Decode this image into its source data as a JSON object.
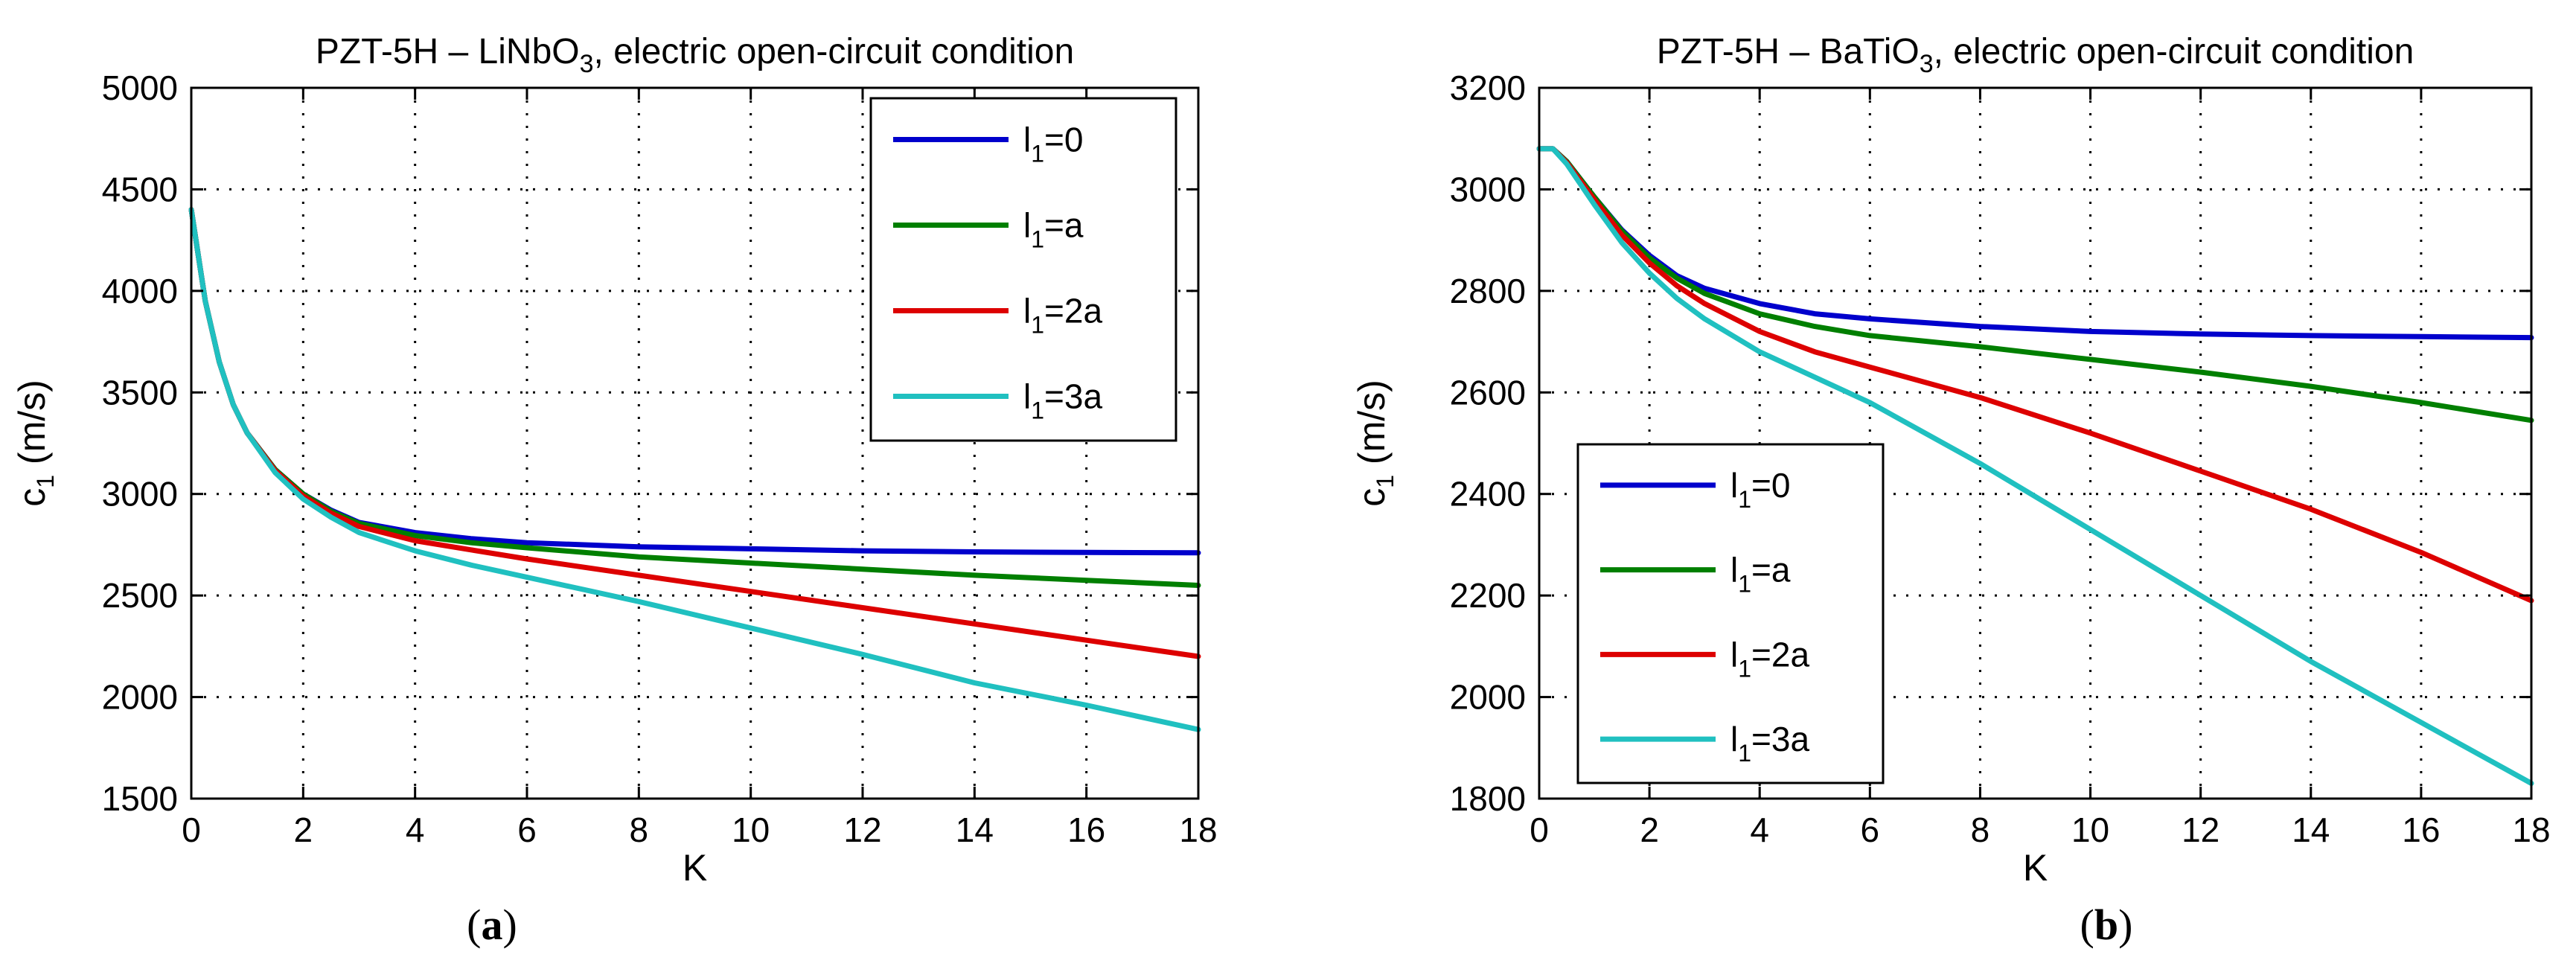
{
  "chart_data": [
    {
      "panel_label": "a",
      "type": "line",
      "title": "PZT-5H – LiNbO3, electric open-circuit condition",
      "title_parts": {
        "before": "PZT-5H – LiNbO",
        "sub": "3",
        "after": ", electric open-circuit condition"
      },
      "xlabel": "K",
      "ylabel": "c",
      "ylabel_sub": "1",
      "ylabel_unit": "(m/s)",
      "xlim": [
        0,
        18
      ],
      "ylim": [
        1500,
        5000
      ],
      "xticks": [
        0,
        2,
        4,
        6,
        8,
        10,
        12,
        14,
        16,
        18
      ],
      "yticks": [
        1500,
        2000,
        2500,
        3000,
        3500,
        4000,
        4500,
        5000
      ],
      "grid": true,
      "legend_position": "top-right",
      "series": [
        {
          "name": "l1=0",
          "label": {
            "pre": "l",
            "sub": "1",
            "post": "=0"
          },
          "color": "#0000cc",
          "x": [
            0,
            0.25,
            0.5,
            0.75,
            1,
            1.5,
            2,
            2.5,
            3,
            4,
            5,
            6,
            8,
            10,
            12,
            14,
            16,
            18
          ],
          "y": [
            4400,
            3950,
            3650,
            3440,
            3300,
            3120,
            3000,
            2920,
            2860,
            2810,
            2780,
            2760,
            2740,
            2730,
            2720,
            2715,
            2712,
            2710
          ]
        },
        {
          "name": "l1=a",
          "label": {
            "pre": "l",
            "sub": "1",
            "post": "=a"
          },
          "color": "#007f00",
          "x": [
            0,
            0.25,
            0.5,
            0.75,
            1,
            1.5,
            2,
            2.5,
            3,
            4,
            5,
            6,
            8,
            10,
            12,
            14,
            16,
            18
          ],
          "y": [
            4400,
            3950,
            3650,
            3440,
            3300,
            3120,
            3000,
            2915,
            2855,
            2795,
            2760,
            2735,
            2690,
            2660,
            2630,
            2600,
            2575,
            2550
          ]
        },
        {
          "name": "l1=2a",
          "label": {
            "pre": "l",
            "sub": "1",
            "post": "=2a"
          },
          "color": "#dd0000",
          "x": [
            0,
            0.25,
            0.5,
            0.75,
            1,
            1.5,
            2,
            2.5,
            3,
            4,
            5,
            6,
            8,
            10,
            12,
            14,
            16,
            18
          ],
          "y": [
            4400,
            3950,
            3650,
            3440,
            3300,
            3115,
            2990,
            2905,
            2840,
            2770,
            2725,
            2680,
            2600,
            2520,
            2440,
            2360,
            2280,
            2200
          ]
        },
        {
          "name": "l1=3a",
          "label": {
            "pre": "l",
            "sub": "1",
            "post": "=3a"
          },
          "color": "#20c0c0",
          "x": [
            0,
            0.25,
            0.5,
            0.75,
            1,
            1.5,
            2,
            2.5,
            3,
            4,
            5,
            6,
            8,
            10,
            12,
            14,
            16,
            18
          ],
          "y": [
            4400,
            3950,
            3650,
            3440,
            3300,
            3105,
            2975,
            2885,
            2810,
            2720,
            2650,
            2590,
            2470,
            2340,
            2210,
            2070,
            1960,
            1840
          ]
        }
      ]
    },
    {
      "panel_label": "b",
      "type": "line",
      "title": "PZT-5H – BaTiO3, electric open-circuit condition",
      "title_parts": {
        "before": "PZT-5H – BaTiO",
        "sub": "3",
        "after": ", electric open-circuit condition"
      },
      "xlabel": "K",
      "ylabel": "c",
      "ylabel_sub": "1",
      "ylabel_unit": "(m/s)",
      "xlim": [
        0,
        18
      ],
      "ylim": [
        1800,
        3200
      ],
      "xticks": [
        0,
        2,
        4,
        6,
        8,
        10,
        12,
        14,
        16,
        18
      ],
      "yticks": [
        1800,
        2000,
        2200,
        2400,
        2600,
        2800,
        3000,
        3200
      ],
      "grid": true,
      "legend_position": "bottom-left",
      "series": [
        {
          "name": "l1=0",
          "label": {
            "pre": "l",
            "sub": "1",
            "post": "=0"
          },
          "color": "#0000cc",
          "x": [
            0,
            0.25,
            0.5,
            1,
            1.5,
            2,
            2.5,
            3,
            4,
            5,
            6,
            8,
            10,
            12,
            14,
            16,
            18
          ],
          "y": [
            3080,
            3080,
            3055,
            2985,
            2920,
            2870,
            2830,
            2805,
            2775,
            2755,
            2745,
            2730,
            2720,
            2715,
            2712,
            2710,
            2708
          ]
        },
        {
          "name": "l1=a",
          "label": {
            "pre": "l",
            "sub": "1",
            "post": "=a"
          },
          "color": "#007f00",
          "x": [
            0,
            0.25,
            0.5,
            1,
            1.5,
            2,
            2.5,
            3,
            4,
            5,
            6,
            8,
            10,
            12,
            14,
            16,
            18
          ],
          "y": [
            3080,
            3080,
            3055,
            2985,
            2918,
            2865,
            2825,
            2795,
            2755,
            2730,
            2712,
            2690,
            2665,
            2640,
            2612,
            2580,
            2545
          ]
        },
        {
          "name": "l1=2a",
          "label": {
            "pre": "l",
            "sub": "1",
            "post": "=2a"
          },
          "color": "#dd0000",
          "x": [
            0,
            0.25,
            0.5,
            1,
            1.5,
            2,
            2.5,
            3,
            4,
            5,
            6,
            8,
            10,
            12,
            14,
            16,
            18
          ],
          "y": [
            3080,
            3080,
            3053,
            2980,
            2910,
            2855,
            2810,
            2775,
            2720,
            2680,
            2650,
            2590,
            2520,
            2445,
            2370,
            2285,
            2190
          ]
        },
        {
          "name": "l1=3a",
          "label": {
            "pre": "l",
            "sub": "1",
            "post": "=3a"
          },
          "color": "#20c0c0",
          "x": [
            0,
            0.25,
            0.5,
            1,
            1.5,
            2,
            2.5,
            3,
            4,
            5,
            6,
            8,
            10,
            12,
            14,
            16,
            18
          ],
          "y": [
            3080,
            3080,
            3050,
            2970,
            2895,
            2835,
            2785,
            2745,
            2680,
            2630,
            2580,
            2460,
            2330,
            2200,
            2070,
            1950,
            1830
          ]
        }
      ]
    }
  ],
  "subfigure_labels": [
    "a",
    "b"
  ]
}
